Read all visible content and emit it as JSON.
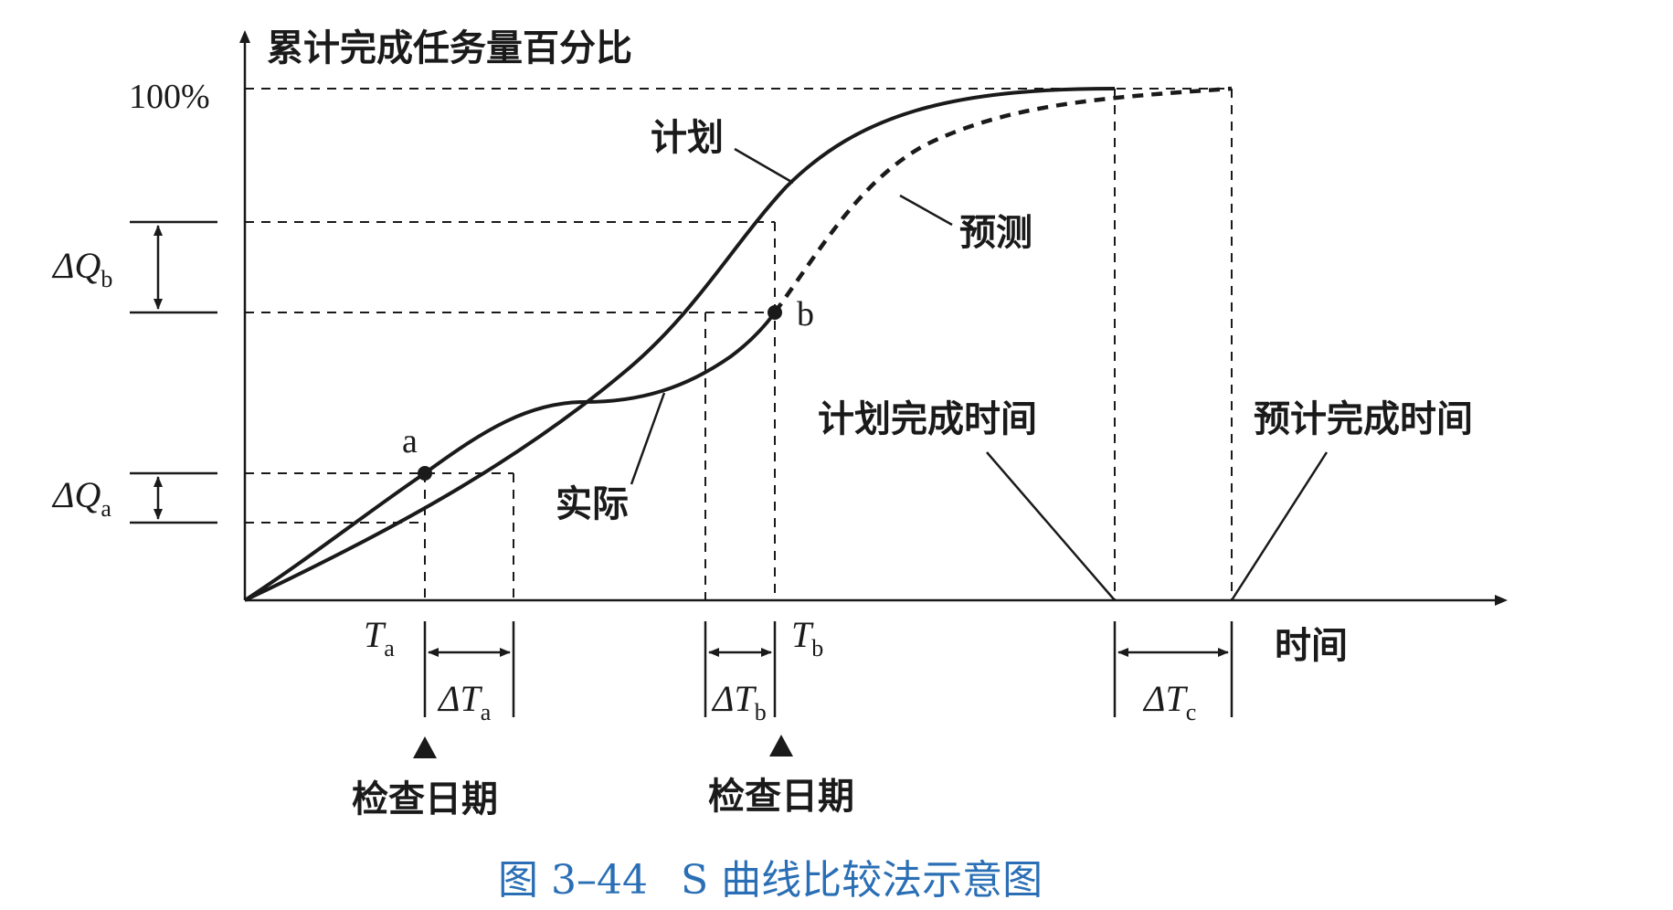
{
  "diagram": {
    "y_axis_title": "累计完成任务量百分比",
    "y_top_tick": "100%",
    "x_axis_title": "时间",
    "curves": {
      "plan": "计划",
      "forecast": "预测",
      "actual": "实际"
    },
    "points": {
      "a": "a",
      "b": "b"
    },
    "delta_q_a": {
      "symbol": "ΔQ",
      "subscript": "a"
    },
    "delta_q_b": {
      "symbol": "ΔQ",
      "subscript": "b"
    },
    "t_a": {
      "symbol": "T",
      "subscript": "a"
    },
    "t_b": {
      "symbol": "T",
      "subscript": "b"
    },
    "delta_t_a": {
      "symbol": "ΔT",
      "subscript": "a"
    },
    "delta_t_b": {
      "symbol": "ΔT",
      "subscript": "b"
    },
    "delta_t_c": {
      "symbol": "ΔT",
      "subscript": "c"
    },
    "planned_completion": "计划完成时间",
    "forecast_completion": "预计完成时间",
    "check_date_1": "检查日期",
    "check_date_2": "检查日期"
  },
  "caption": {
    "figure_no": "图 3–44",
    "title": "S 曲线比较法示意图"
  }
}
